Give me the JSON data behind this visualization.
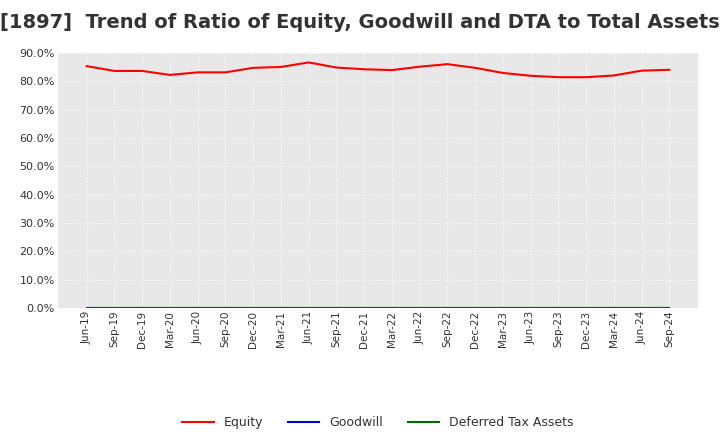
{
  "title": "[1897]  Trend of Ratio of Equity, Goodwill and DTA to Total Assets",
  "title_fontsize": 14,
  "background_color": "#ffffff",
  "plot_bg_color": "#e8e8e8",
  "grid_color": "#ffffff",
  "x_labels": [
    "Jun-19",
    "Sep-19",
    "Dec-19",
    "Mar-20",
    "Jun-20",
    "Sep-20",
    "Dec-20",
    "Mar-21",
    "Jun-21",
    "Sep-21",
    "Dec-21",
    "Mar-22",
    "Jun-22",
    "Sep-22",
    "Dec-22",
    "Mar-23",
    "Jun-23",
    "Sep-23",
    "Dec-23",
    "Mar-24",
    "Jun-24",
    "Sep-24"
  ],
  "equity": [
    0.853,
    0.836,
    0.836,
    0.822,
    0.831,
    0.831,
    0.847,
    0.85,
    0.866,
    0.848,
    0.842,
    0.839,
    0.851,
    0.86,
    0.847,
    0.829,
    0.819,
    0.814,
    0.814,
    0.82,
    0.837,
    0.84
  ],
  "goodwill": [
    0.0,
    0.0,
    0.0,
    0.0,
    0.0,
    0.0,
    0.0,
    0.0,
    0.0,
    0.0,
    0.0,
    0.0,
    0.0,
    0.0,
    0.0,
    0.0,
    0.0,
    0.0,
    0.0,
    0.0,
    0.0,
    0.0
  ],
  "dta": [
    0.0,
    0.0,
    0.0,
    0.0,
    0.0,
    0.0,
    0.0,
    0.0,
    0.0,
    0.0,
    0.0,
    0.0,
    0.0,
    0.0,
    0.0,
    0.0,
    0.0,
    0.0,
    0.0,
    0.0,
    0.0,
    0.0
  ],
  "equity_color": "#ff0000",
  "goodwill_color": "#0000cc",
  "dta_color": "#006600",
  "ylim": [
    0.0,
    0.9
  ],
  "yticks": [
    0.0,
    0.1,
    0.2,
    0.3,
    0.4,
    0.5,
    0.6,
    0.7,
    0.8,
    0.9
  ],
  "legend_labels": [
    "Equity",
    "Goodwill",
    "Deferred Tax Assets"
  ]
}
